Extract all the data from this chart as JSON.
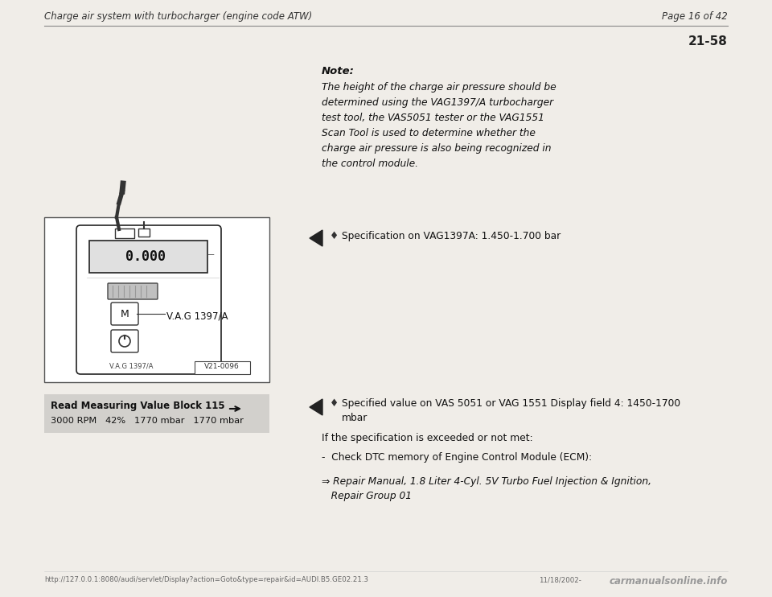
{
  "bg_color": "#f0ede8",
  "header_left": "Charge air system with turbocharger (engine code ATW)",
  "header_right": "Page 16 of 42",
  "page_number": "21-58",
  "note_bold": "Note:",
  "note_text": "The height of the charge air pressure should be\ndetermined using the VAG1397/A turbocharger\ntest tool, the VAS5051 tester or the VAG1551\nScan Tool is used to determine whether the\ncharge air pressure is also being recognized in\nthe control module.",
  "spec1_bullet": "Specification on VAG1397A: 1.450-1.700 bar",
  "spec2_bullet": "Specified value on VAS 5051 or VAG 1551 Display field 4: 1450-1700\nmbar",
  "if_spec_text": "If the specification is exceeded or not met:",
  "check_dtc": "-  Check DTC memory of Engine Control Module (ECM):",
  "repair_manual_arrow": "⇒",
  "repair_manual_text": " Repair Manual, 1.8 Liter 4-Cyl. 5V Turbo Fuel Injection & Ignition,\n   Repair Group 01",
  "read_block_label": "Read Measuring Value Block 115",
  "read_block_arrow": "→",
  "read_block_data": "3000 RPM   42%   1770 mbar   1770 mbar",
  "footer_url": "http://127.0.0.1:8080/audi/servlet/Display?action=Goto&type=repair&id=AUDI.B5.GE02.21.3",
  "footer_date": "11/18/2002-",
  "footer_logo": "carmanualsonline.info",
  "diamond": "♦"
}
